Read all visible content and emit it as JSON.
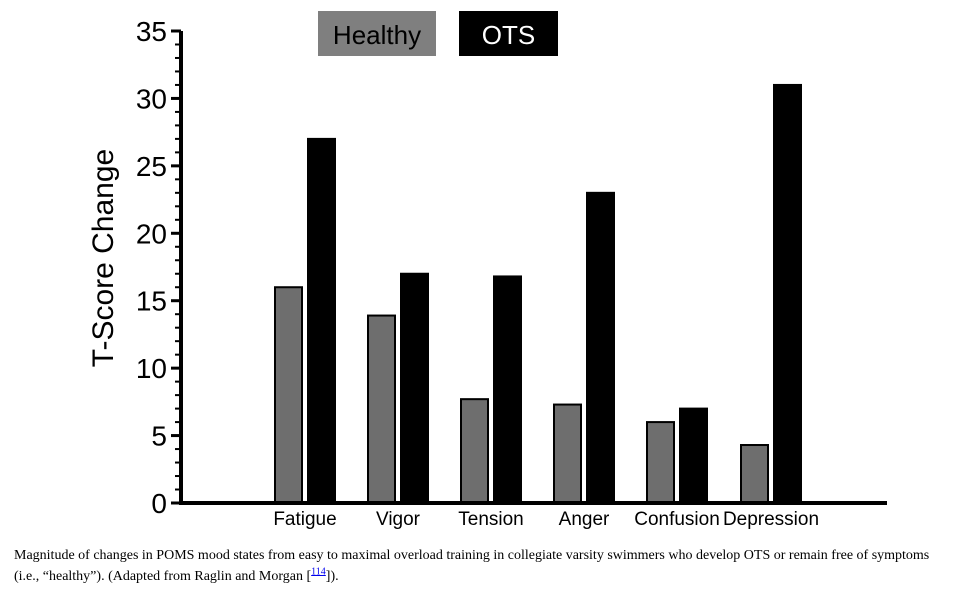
{
  "chart_data": {
    "type": "bar",
    "categories": [
      "Fatigue",
      "Vigor",
      "Tension",
      "Anger",
      "Confusion",
      "Depression"
    ],
    "series": [
      {
        "name": "Healthy",
        "values": [
          16,
          13.9,
          7.7,
          7.3,
          6,
          4.3
        ],
        "color": "#6e6e6e"
      },
      {
        "name": "OTS",
        "values": [
          27,
          17,
          16.8,
          23,
          7,
          31
        ],
        "color": "#000000"
      }
    ],
    "ylabel": "T-Score Change",
    "ylim": [
      0,
      35
    ],
    "yticks": [
      0,
      5,
      10,
      15,
      20,
      25,
      30,
      35
    ],
    "legend_position": "top",
    "legend_colors": {
      "Healthy": "#7f7f7f",
      "OTS": "#000000"
    },
    "grid": false
  },
  "caption": {
    "text": "Magnitude of changes in POMS mood states from easy to maximal overload training in collegiate varsity swimmers who develop OTS or remain free of symptoms (i.e., “healthy”). (Adapted from Raglin and Morgan [",
    "ref": "114",
    "end": "])."
  }
}
